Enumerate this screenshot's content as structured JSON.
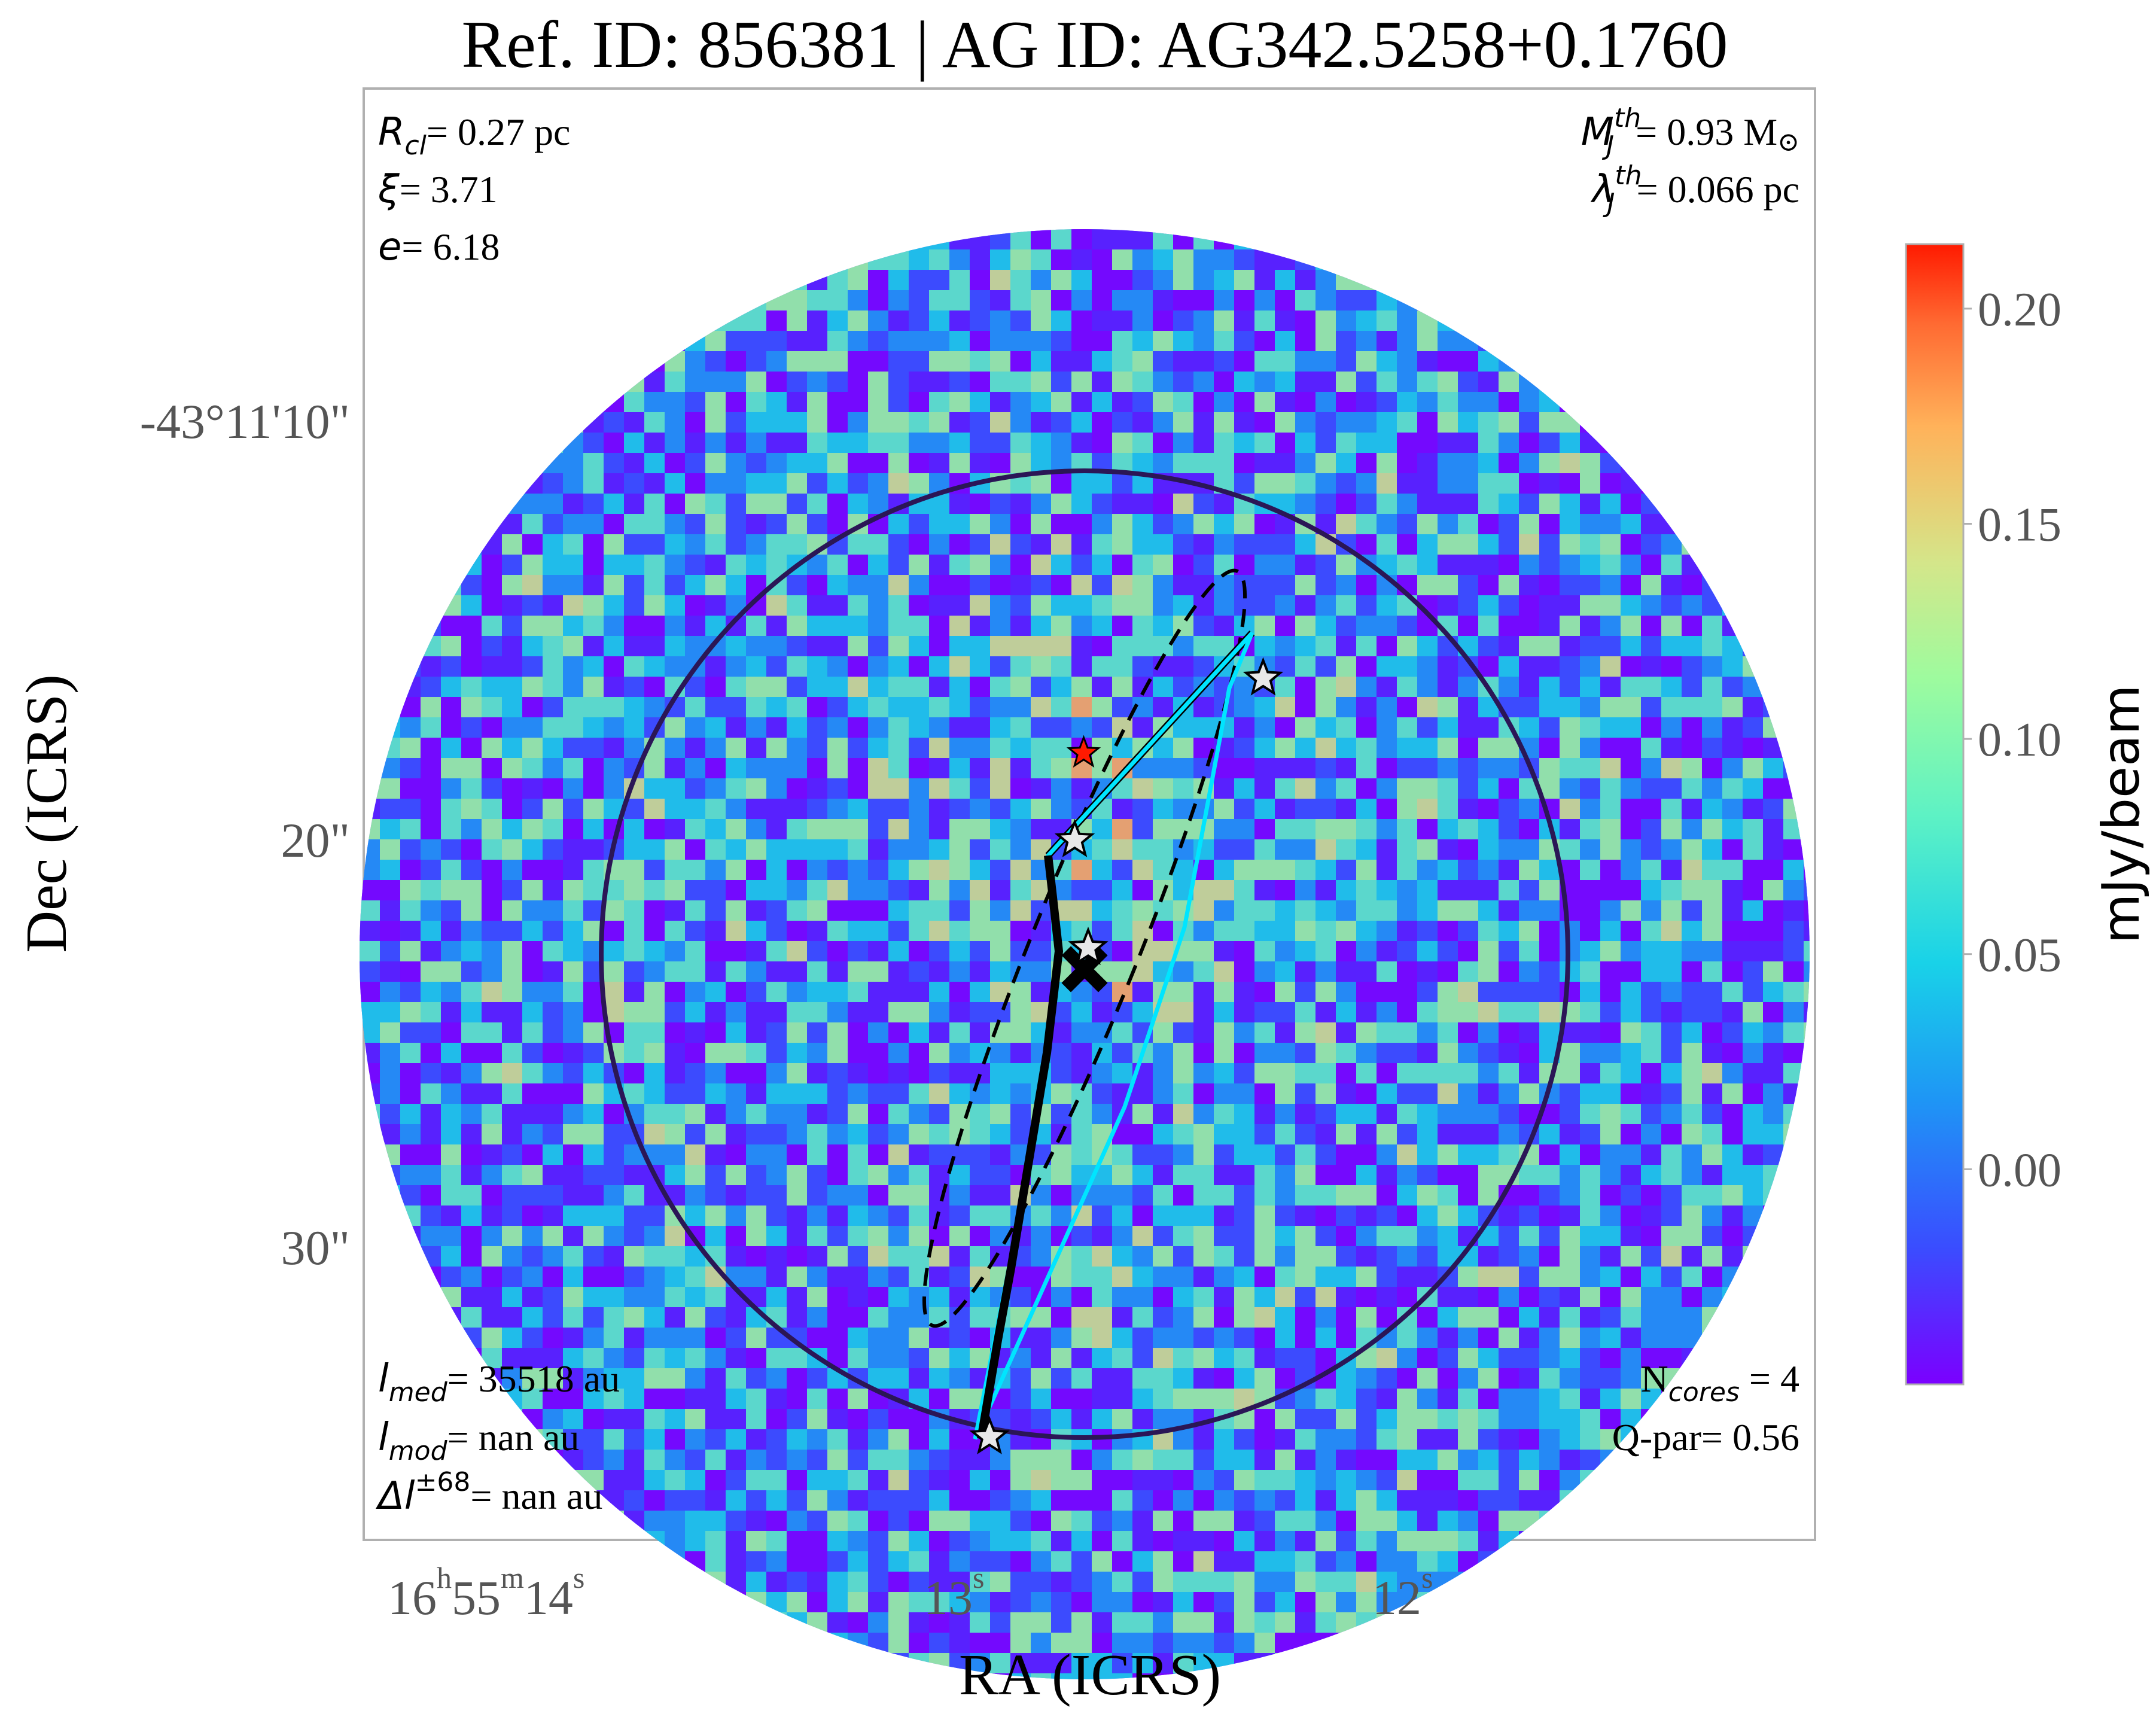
{
  "chart_data": {
    "type": "heatmap",
    "title": "Ref. ID: 856381 | AG ID: AG342.5258+0.1760",
    "xlabel": "RA (ICRS)",
    "ylabel": "Dec (ICRS)",
    "x_ticks": [
      {
        "value": 14,
        "h": "16",
        "m": "55",
        "s": "14",
        "sup_h": "h",
        "sup_m": "m",
        "sup_s": "s"
      },
      {
        "value": 13,
        "label": "13",
        "sup_s": "s"
      },
      {
        "value": 12,
        "label": "12",
        "sup_s": "s"
      }
    ],
    "y_ticks": [
      {
        "value": 10,
        "label": "-43°11'10\""
      },
      {
        "value": 20,
        "label": "20\""
      },
      {
        "value": 30,
        "label": "30\""
      }
    ],
    "colorbar": {
      "label": "mJy/beam",
      "range": [
        -0.05,
        0.215
      ],
      "ticks": [
        0.2,
        0.15,
        0.1,
        0.05,
        0.0
      ],
      "tick_labels": [
        "0.20",
        "0.15",
        "0.10",
        "0.05",
        "0.00"
      ],
      "colormap": "rainbow"
    },
    "annotations": {
      "top_left": [
        {
          "sym": "R",
          "sub": "cl",
          "val": "= 0.27 pc"
        },
        {
          "sym": "ξ",
          "val": "= 3.71"
        },
        {
          "sym": "e",
          "val": "= 6.18"
        }
      ],
      "top_right": [
        {
          "sym": "M",
          "sup": "th",
          "sub": "J",
          "val": "= 0.93 M",
          "sun": "⊙"
        },
        {
          "sym": "λ",
          "sup": "th",
          "sub": "J",
          "val": "= 0.066 pc"
        }
      ],
      "bottom_left": [
        {
          "sym": "l",
          "sub": "med",
          "val": "= 35518 au"
        },
        {
          "sym": "l",
          "sub": "mod",
          "val": "= nan au"
        },
        {
          "sym": "Δl",
          "sup": "±68",
          "val": "= nan au"
        }
      ],
      "bottom_right": [
        {
          "pre": "N",
          "sub": "cores",
          "val": " = 4"
        },
        {
          "pre": "Q-par",
          "val": "= 0.56"
        }
      ]
    },
    "cores": [
      {
        "ra_s": 12.35,
        "dec": 15.8
      },
      {
        "ra_s": 12.77,
        "dec": 19.7
      },
      {
        "ra_s": 12.74,
        "dec": 22.3
      },
      {
        "ra_s": 12.96,
        "dec": 34.1
      }
    ],
    "clump_center": {
      "ra_s": 12.68,
      "dec": 22.8
    },
    "peak_marker": {
      "ra_s": 12.75,
      "dec": 17.6
    },
    "colors": {
      "cmap_min": "#7b00ff",
      "cmap_max": "#ff1a00",
      "mst_edge": "#00e5ff",
      "spine": "#000000",
      "clump_circle": "#2b1656",
      "frame": "#b0b0b0"
    }
  }
}
